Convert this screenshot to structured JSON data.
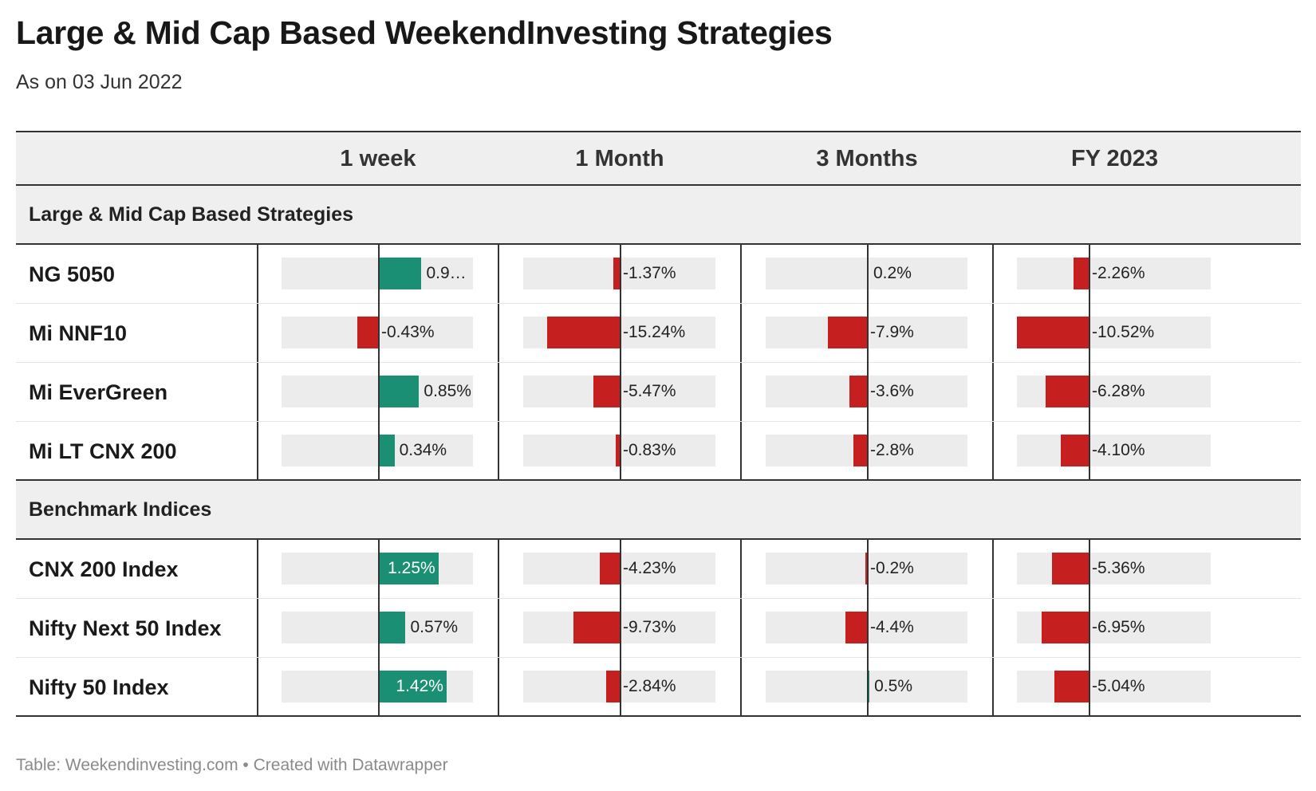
{
  "title": "Large & Mid Cap Based WeekendInvesting Strategies",
  "subtitle": "As on 03 Jun 2022",
  "footer": "Table: Weekendinvesting.com • Created with Datawrapper",
  "colors": {
    "positive": "#1a8f74",
    "negative": "#c61f1f",
    "bar_background": "#ececec",
    "header_background": "#efefef"
  },
  "chart_data": {
    "type": "table",
    "columns": [
      "1 week",
      "1 Month",
      "3 Months",
      "FY 2023"
    ],
    "groups": [
      {
        "name": "Large & Mid Cap Based Strategies",
        "rows": [
          {
            "name": "NG 5050",
            "values": [
              0.9,
              -1.37,
              0.2,
              -2.26
            ],
            "labels": [
              "0.9…",
              "-1.37%",
              "0.2%",
              "-2.26%"
            ]
          },
          {
            "name": "Mi NNF10",
            "values": [
              -0.43,
              -15.24,
              -7.9,
              -10.52
            ],
            "labels": [
              "-0.43%",
              "-15.24%",
              "-7.9%",
              "-10.52%"
            ]
          },
          {
            "name": "Mi EverGreen",
            "values": [
              0.85,
              -5.47,
              -3.6,
              -6.28
            ],
            "labels": [
              "0.85%",
              "-5.47%",
              "-3.6%",
              "-6.28%"
            ]
          },
          {
            "name": "Mi LT CNX 200",
            "values": [
              0.34,
              -0.83,
              -2.8,
              -4.1
            ],
            "labels": [
              "0.34%",
              "-0.83%",
              "-2.8%",
              "-4.10%"
            ]
          }
        ]
      },
      {
        "name": "Benchmark Indices",
        "rows": [
          {
            "name": "CNX 200 Index",
            "values": [
              1.25,
              -4.23,
              -0.2,
              -5.36
            ],
            "labels": [
              "1.25%",
              "-4.23%",
              "-0.2%",
              "-5.36%"
            ]
          },
          {
            "name": "Nifty Next 50 Index",
            "values": [
              0.57,
              -9.73,
              -4.4,
              -6.95
            ],
            "labels": [
              "0.57%",
              "-9.73%",
              "-4.4%",
              "-6.95%"
            ]
          },
          {
            "name": "Nifty 50 Index",
            "values": [
              1.42,
              -2.84,
              0.5,
              -5.04
            ],
            "labels": [
              "1.42%",
              "-2.84%",
              "0.5%",
              "-5.04%"
            ]
          }
        ]
      }
    ]
  }
}
